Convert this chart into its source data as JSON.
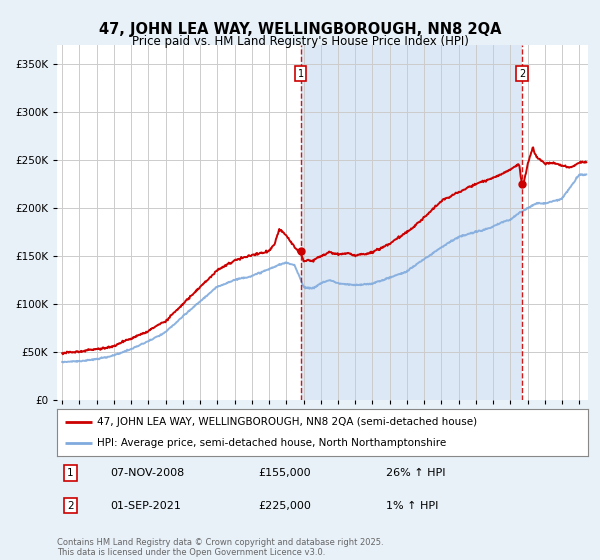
{
  "title": "47, JOHN LEA WAY, WELLINGBOROUGH, NN8 2QA",
  "subtitle": "Price paid vs. HM Land Registry's House Price Index (HPI)",
  "background_color": "#e8f0f8",
  "plot_bg_color": "#ffffff",
  "between_vlines_color": "#dce8f5",
  "legend_line1": "47, JOHN LEA WAY, WELLINGBOROUGH, NN8 2QA (semi-detached house)",
  "legend_line2": "HPI: Average price, semi-detached house, North Northamptonshire",
  "sale1_label": "1",
  "sale1_date": "07-NOV-2008",
  "sale1_price": "£155,000",
  "sale1_hpi": "26% ↑ HPI",
  "sale2_label": "2",
  "sale2_date": "01-SEP-2021",
  "sale2_price": "£225,000",
  "sale2_hpi": "1% ↑ HPI",
  "copyright_text": "Contains HM Land Registry data © Crown copyright and database right 2025.\nThis data is licensed under the Open Government Licence v3.0.",
  "ylim": [
    0,
    370000
  ],
  "yticks": [
    0,
    50000,
    100000,
    150000,
    200000,
    250000,
    300000,
    350000
  ],
  "red_color": "#cc0000",
  "blue_color": "#80aadd",
  "vline_color": "#cc0000",
  "grid_color": "#cccccc",
  "sale1_x": 2008.85,
  "sale2_x": 2021.67,
  "sale1_y": 155000,
  "sale2_y": 225000,
  "xmin": 1994.7,
  "xmax": 2025.5
}
